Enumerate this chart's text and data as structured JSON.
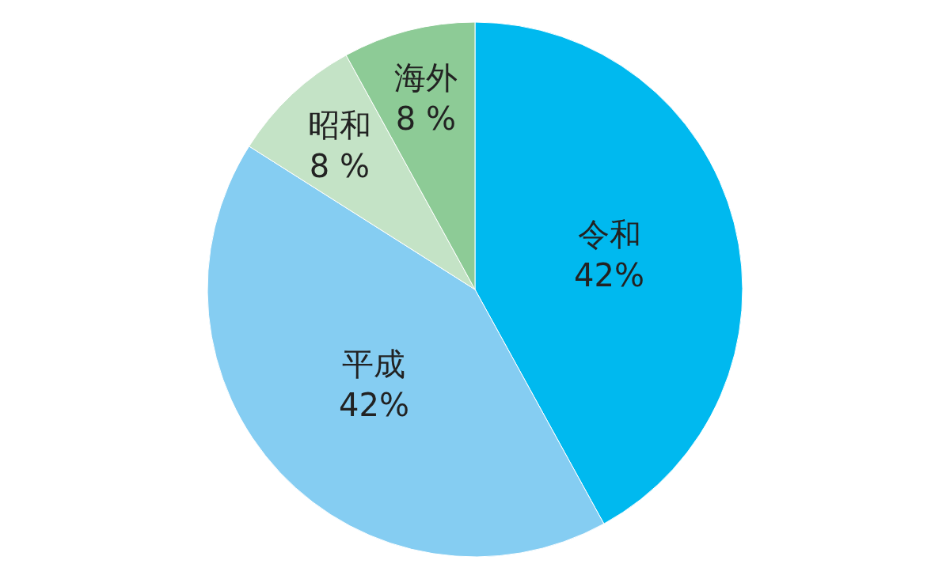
{
  "chart_data": {
    "type": "pie",
    "categories": [
      "令和",
      "平成",
      "昭和",
      "海外"
    ],
    "values": [
      42,
      42,
      8,
      8
    ],
    "colors": [
      "#00b9ef",
      "#85cdf2",
      "#c4e3c6",
      "#8dcb96"
    ],
    "value_labels": [
      "42%",
      "42%",
      "8 %",
      "8 %"
    ]
  }
}
